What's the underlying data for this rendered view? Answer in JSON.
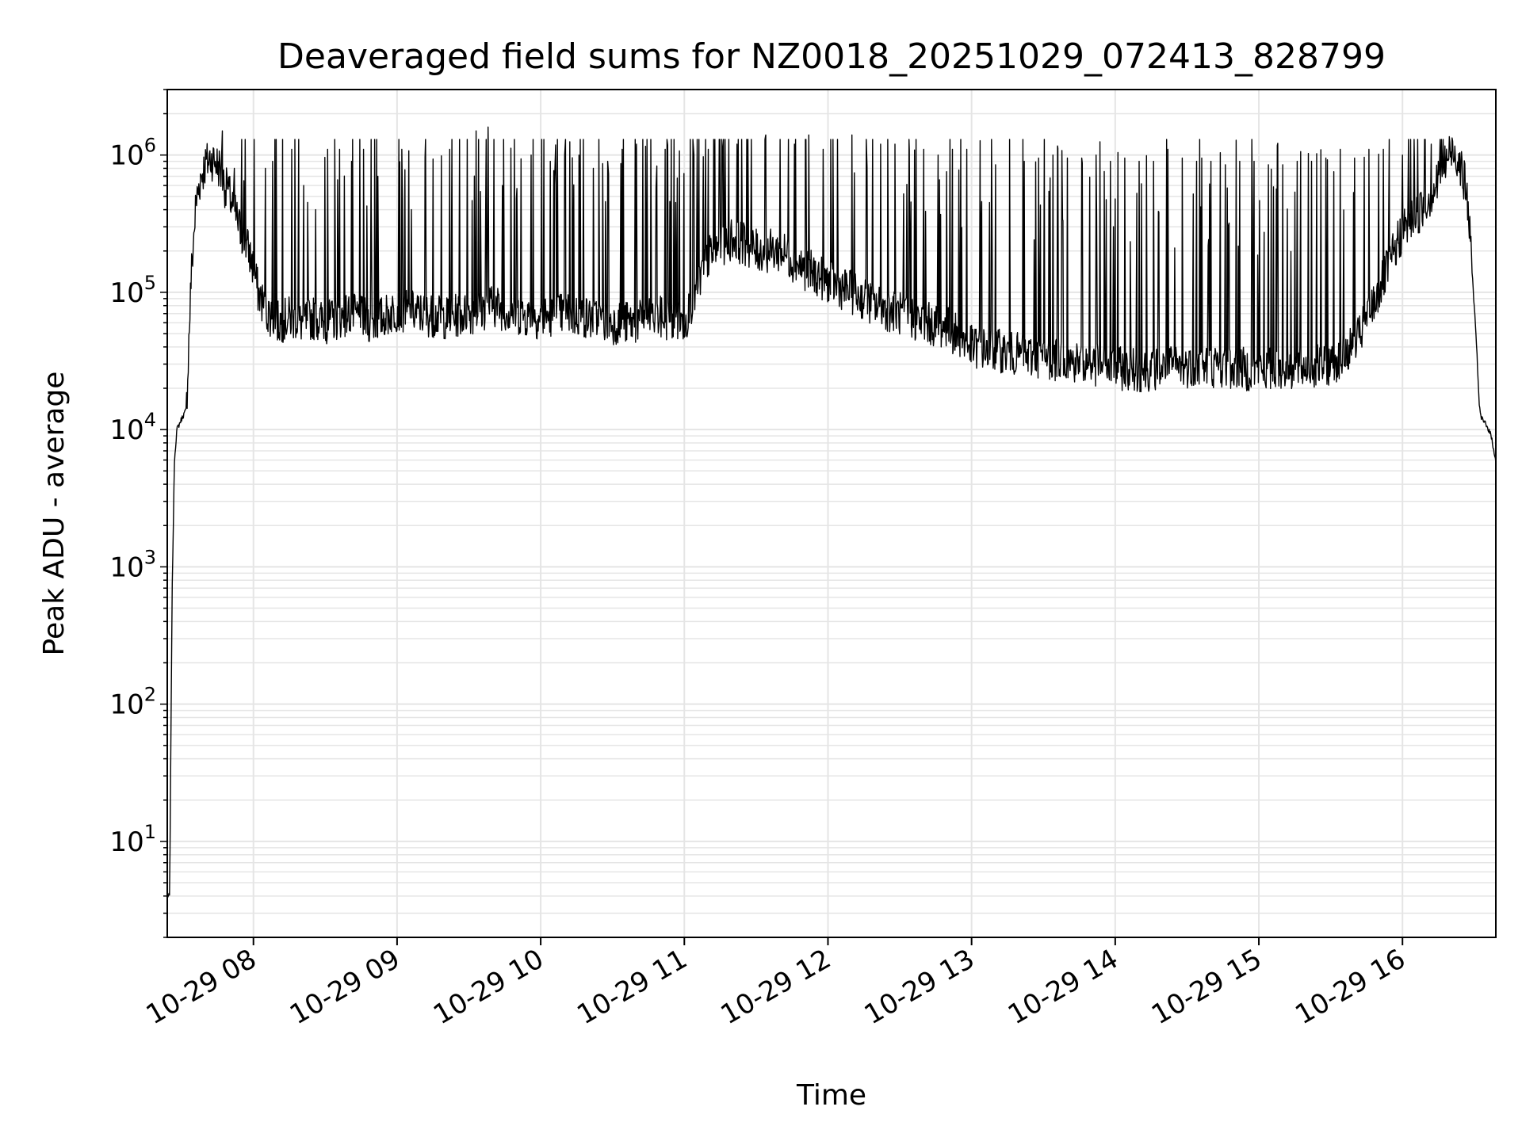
{
  "chart_data": {
    "type": "line",
    "title": "Deaveraged field sums for NZ0018_20251029_072413_828799",
    "xlabel": "Time",
    "ylabel": "Peak ADU - average",
    "yscale": "log",
    "xlim": [
      "10-29 07:24",
      "10-29 16:39"
    ],
    "ylim": [
      2,
      3000000
    ],
    "grid": true,
    "line_color": "#000000",
    "grid_color": "#e5e5e5",
    "x_ticks": [
      "10-29 08",
      "10-29 09",
      "10-29 10",
      "10-29 11",
      "10-29 12",
      "10-29 13",
      "10-29 14",
      "10-29 15",
      "10-29 16"
    ],
    "y_ticks": [
      {
        "base": "10",
        "exp": "1",
        "value": 10
      },
      {
        "base": "10",
        "exp": "2",
        "value": 100
      },
      {
        "base": "10",
        "exp": "3",
        "value": 1000
      },
      {
        "base": "10",
        "exp": "4",
        "value": 10000
      },
      {
        "base": "10",
        "exp": "5",
        "value": 100000
      },
      {
        "base": "10",
        "exp": "6",
        "value": 1000000
      }
    ],
    "series": [
      {
        "x": [
          "07:24",
          "07:25",
          "07:26",
          "07:27",
          "07:28",
          "07:30",
          "07:32",
          "07:34",
          "07:36",
          "07:38",
          "07:40",
          "07:42",
          "07:44",
          "07:46",
          "07:48",
          "07:50",
          "07:52",
          "07:54",
          "07:56",
          "07:58",
          "08:00",
          "08:02",
          "08:05",
          "08:10",
          "08:15",
          "08:20",
          "08:25",
          "08:30",
          "08:40",
          "08:50",
          "09:00",
          "09:10",
          "09:20",
          "09:30",
          "09:40",
          "09:50",
          "10:00",
          "10:10",
          "10:20",
          "10:30",
          "10:40",
          "10:50",
          "11:00",
          "11:10",
          "11:20",
          "11:30",
          "11:40",
          "11:50",
          "12:00",
          "12:10",
          "12:20",
          "12:30",
          "12:40",
          "12:50",
          "13:00",
          "13:10",
          "13:20",
          "13:30",
          "13:40",
          "13:50",
          "14:00",
          "14:10",
          "14:20",
          "14:30",
          "14:40",
          "14:50",
          "15:00",
          "15:10",
          "15:20",
          "15:30",
          "15:40",
          "15:50",
          "16:00",
          "16:05",
          "16:10",
          "16:15",
          "16:18",
          "16:21",
          "16:24",
          "16:27",
          "16:29",
          "16:31",
          "16:32",
          "16:33",
          "16:35",
          "16:37",
          "16:39"
        ],
        "y": [
          4,
          4,
          600,
          6000,
          10000,
          12000,
          14000,
          130000,
          450000,
          700000,
          850000,
          950000,
          900000,
          800000,
          600000,
          500000,
          400000,
          300000,
          250000,
          200000,
          150000,
          100000,
          75000,
          60000,
          65000,
          60000,
          65000,
          60000,
          70000,
          60000,
          75000,
          70000,
          65000,
          70000,
          80000,
          70000,
          65000,
          70000,
          65000,
          60000,
          60000,
          65000,
          60000,
          180000,
          250000,
          200000,
          200000,
          150000,
          120000,
          100000,
          80000,
          70000,
          60000,
          55000,
          40000,
          38000,
          35000,
          33000,
          32000,
          30000,
          28000,
          27000,
          28000,
          29000,
          29000,
          28000,
          27000,
          28000,
          28000,
          30000,
          40000,
          100000,
          280000,
          350000,
          450000,
          650000,
          900000,
          1100000,
          900000,
          500000,
          150000,
          40000,
          15000,
          12000,
          11000,
          9000,
          6000
        ],
        "spikes": [
          [
            "07:47",
            1500000
          ],
          [
            "07:49",
            700000
          ],
          [
            "07:52",
            800000
          ],
          [
            "07:56",
            650000
          ],
          [
            "08:05",
            800000
          ],
          [
            "08:08",
            900000
          ],
          [
            "08:12",
            1000000
          ],
          [
            "08:16",
            1100000
          ],
          [
            "08:21",
            600000
          ],
          [
            "08:26",
            400000
          ],
          [
            "08:31",
            1100000
          ],
          [
            "08:36",
            1100000
          ],
          [
            "08:41",
            900000
          ],
          [
            "08:46",
            1100000
          ],
          [
            "08:52",
            700000
          ],
          [
            "09:02",
            1100000
          ],
          [
            "09:06",
            400000
          ],
          [
            "09:12",
            1000000
          ],
          [
            "09:22",
            1100000
          ],
          [
            "09:33",
            1500000
          ],
          [
            "09:38",
            1600000
          ],
          [
            "09:44",
            600000
          ],
          [
            "09:50",
            500000
          ],
          [
            "09:56",
            1000000
          ],
          [
            "10:04",
            900000
          ],
          [
            "10:10",
            1000000
          ],
          [
            "10:16",
            1000000
          ],
          [
            "10:22",
            800000
          ],
          [
            "10:28",
            900000
          ],
          [
            "10:34",
            1100000
          ],
          [
            "10:40",
            1200000
          ],
          [
            "10:46",
            1300000
          ],
          [
            "10:52",
            1100000
          ],
          [
            "10:58",
            1100000
          ],
          [
            "11:04",
            1000000
          ],
          [
            "11:10",
            1100000
          ],
          [
            "11:16",
            1100000
          ],
          [
            "11:22",
            1200000
          ],
          [
            "11:28",
            1300000
          ],
          [
            "11:34",
            1400000
          ],
          [
            "11:40",
            1300000
          ],
          [
            "11:46",
            1200000
          ],
          [
            "11:52",
            1400000
          ],
          [
            "11:58",
            1100000
          ],
          [
            "12:04",
            1300000
          ],
          [
            "12:10",
            1400000
          ],
          [
            "12:16",
            1300000
          ],
          [
            "12:22",
            1200000
          ],
          [
            "12:28",
            1200000
          ],
          [
            "12:34",
            1100000
          ],
          [
            "12:40",
            1100000
          ],
          [
            "12:46",
            1000000
          ],
          [
            "12:52",
            1100000
          ],
          [
            "12:58",
            1100000
          ],
          [
            "13:04",
            900000
          ],
          [
            "13:10",
            850000
          ],
          [
            "13:16",
            1000000
          ],
          [
            "13:22",
            900000
          ],
          [
            "13:28",
            950000
          ],
          [
            "13:34",
            1000000
          ],
          [
            "13:40",
            950000
          ],
          [
            "13:46",
            950000
          ],
          [
            "13:52",
            1000000
          ],
          [
            "13:58",
            900000
          ],
          [
            "14:04",
            950000
          ],
          [
            "14:10",
            900000
          ],
          [
            "14:16",
            900000
          ],
          [
            "14:22",
            1100000
          ],
          [
            "14:28",
            950000
          ],
          [
            "14:34",
            900000
          ],
          [
            "14:40",
            900000
          ],
          [
            "14:46",
            850000
          ],
          [
            "14:52",
            900000
          ],
          [
            "14:58",
            900000
          ],
          [
            "15:04",
            850000
          ],
          [
            "15:10",
            850000
          ],
          [
            "15:16",
            900000
          ],
          [
            "15:22",
            900000
          ],
          [
            "15:28",
            950000
          ],
          [
            "15:34",
            1100000
          ],
          [
            "15:40",
            950000
          ],
          [
            "15:46",
            1100000
          ],
          [
            "15:52",
            1100000
          ],
          [
            "16:00",
            1000000
          ],
          [
            "16:05",
            900000
          ],
          [
            "16:12",
            1200000
          ]
        ]
      }
    ]
  }
}
